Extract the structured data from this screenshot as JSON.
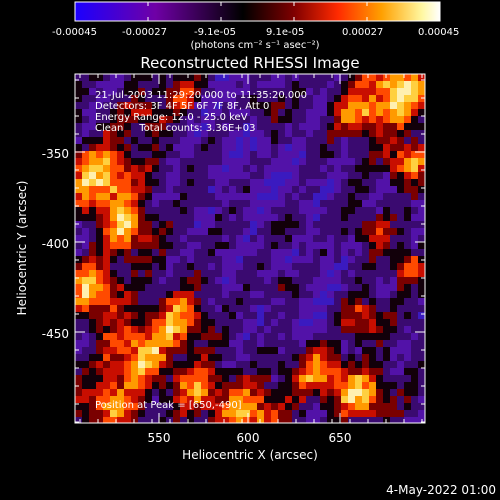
{
  "colorbar": {
    "tick_labels": [
      "-0.00045",
      "-0.00027",
      "-9.1e-05",
      "9.1e-05",
      "0.00027",
      "0.00045"
    ],
    "units_label": "(photons cm⁻² s⁻¹ asec⁻²)",
    "gradient_colors": [
      "#1b00ff",
      "#6f00a6",
      "#000000",
      "#7f0000",
      "#ff2a00",
      "#ffa000",
      "#fff7a0",
      "#ffffff"
    ]
  },
  "plot": {
    "title": "Reconstructed RHESSI Image",
    "xlabel": "Heliocentric X (arcsec)",
    "ylabel": "Heliocentric Y (arcsec)",
    "x_ticks": [
      "550",
      "600",
      "650"
    ],
    "y_ticks": [
      "-350",
      "-400",
      "-450"
    ],
    "xlim": [
      505,
      695
    ],
    "ylim": [
      -500,
      -310
    ],
    "info_lines": [
      "21-Jul-2003 11:29:20.000 to 11:35:20.000",
      "Detectors: 3F 4F 5F 6F 7F 8F, Att 0",
      "Energy Range: 12.0 - 25.0 keV",
      "Clean     Total counts: 3.36E+03"
    ],
    "peak_text": "Position at Peak = [650,-490]"
  },
  "footer": {
    "timestamp": "4-May-2022 01:00"
  }
}
